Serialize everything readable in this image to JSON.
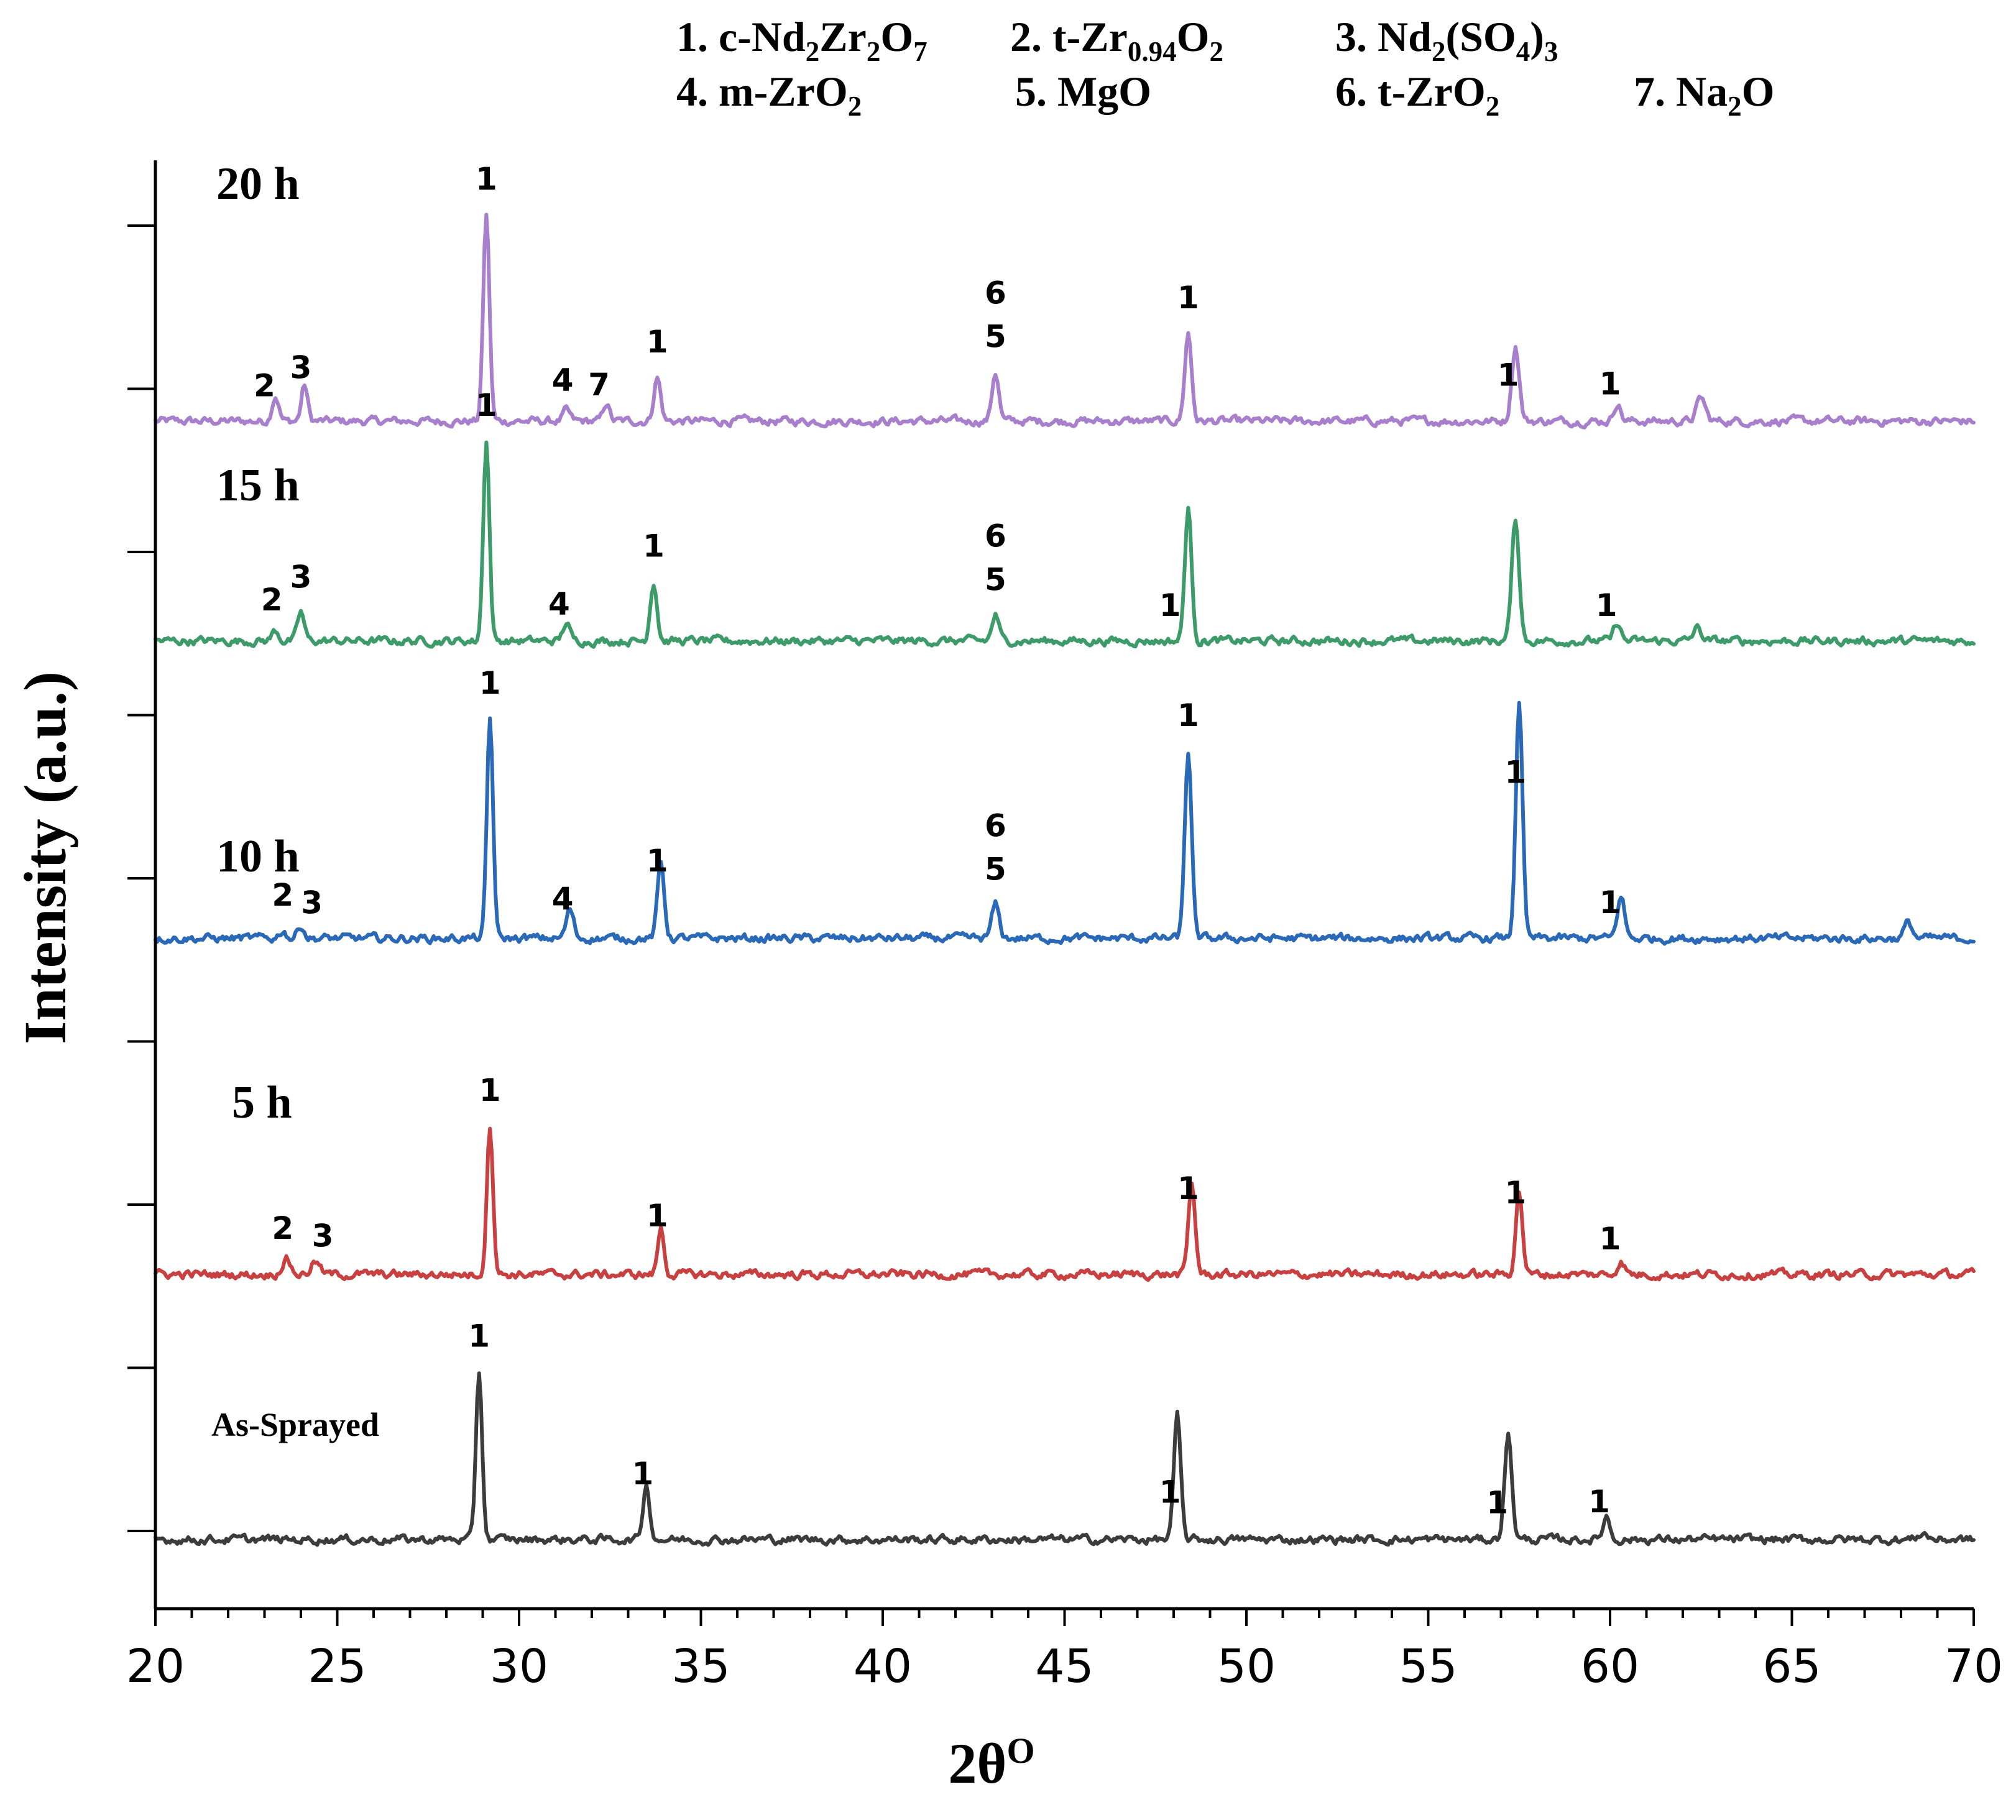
{
  "legend": [
    {
      "id": "1",
      "parts": [
        {
          "t": "1. c-Nd"
        },
        {
          "t": "2",
          "sub": true
        },
        {
          "t": "Zr"
        },
        {
          "t": "2",
          "sub": true
        },
        {
          "t": "O"
        },
        {
          "t": "7",
          "sub": true
        }
      ]
    },
    {
      "id": "2",
      "parts": [
        {
          "t": "2.  t-Zr"
        },
        {
          "t": "0.94",
          "sub": true
        },
        {
          "t": "O"
        },
        {
          "t": "2",
          "sub": true
        }
      ]
    },
    {
      "id": "3",
      "parts": [
        {
          "t": "3. Nd"
        },
        {
          "t": "2",
          "sub": true
        },
        {
          "t": "(SO"
        },
        {
          "t": "4",
          "sub": true
        },
        {
          "t": ")"
        },
        {
          "t": "3",
          "sub": true
        }
      ]
    },
    {
      "id": "4",
      "parts": [
        {
          "t": "4. m-ZrO"
        },
        {
          "t": "2",
          "sub": true
        }
      ]
    },
    {
      "id": "5",
      "parts": [
        {
          "t": "5.  MgO"
        }
      ]
    },
    {
      "id": "6",
      "parts": [
        {
          "t": "6. t-ZrO"
        },
        {
          "t": "2",
          "sub": true
        }
      ]
    },
    {
      "id": "7",
      "parts": [
        {
          "t": "7. Na"
        },
        {
          "t": "2",
          "sub": true
        },
        {
          "t": "O"
        }
      ]
    }
  ],
  "chart_data": {
    "type": "line",
    "xlabel": "2θ",
    "xlabel_superscript": "O",
    "ylabel": "Intensity (a.u.)",
    "xlim": [
      20,
      70
    ],
    "x_ticks": [
      20,
      25,
      30,
      35,
      40,
      45,
      50,
      55,
      60,
      65,
      70
    ],
    "ylim": [
      0,
      10
    ],
    "grid": false,
    "series": [
      {
        "name": "20 h",
        "color": "#a87fcc",
        "baseline": 8.8,
        "peaks": [
          [
            23.3,
            0.2,
            0.22
          ],
          [
            24.1,
            0.28,
            0.2
          ],
          [
            29.1,
            1.6,
            0.2
          ],
          [
            31.3,
            0.08,
            0.22
          ],
          [
            32.4,
            0.14,
            0.2
          ],
          [
            33.8,
            0.34,
            0.22
          ],
          [
            43.1,
            0.38,
            0.22
          ],
          [
            48.4,
            0.68,
            0.22
          ],
          [
            57.4,
            0.58,
            0.24
          ],
          [
            60.2,
            0.14,
            0.22
          ],
          [
            62.5,
            0.18,
            0.28
          ]
        ],
        "peak_labels": [
          {
            "x": 23.0,
            "text": "2"
          },
          {
            "x": 24.0,
            "text": "3"
          },
          {
            "x": 29.1,
            "text": "1"
          },
          {
            "x": 31.2,
            "text": "4"
          },
          {
            "x": 32.2,
            "text": "7"
          },
          {
            "x": 33.8,
            "text": "1"
          },
          {
            "x": 43.1,
            "text": "6"
          },
          {
            "x": 43.1,
            "text": "5"
          },
          {
            "x": 48.4,
            "text": "1"
          },
          {
            "x": 57.2,
            "text": "1"
          },
          {
            "x": 60.0,
            "text": "1"
          }
        ]
      },
      {
        "name": "15 h",
        "color": "#3c9b68",
        "baseline": 7.1,
        "peaks": [
          [
            23.3,
            0.08,
            0.22
          ],
          [
            24.0,
            0.22,
            0.22
          ],
          [
            29.1,
            1.55,
            0.2
          ],
          [
            31.3,
            0.14,
            0.22
          ],
          [
            33.7,
            0.46,
            0.22
          ],
          [
            43.1,
            0.2,
            0.22
          ],
          [
            48.4,
            1.02,
            0.22
          ],
          [
            57.4,
            0.94,
            0.24
          ],
          [
            60.2,
            0.14,
            0.22
          ],
          [
            62.4,
            0.1,
            0.26
          ]
        ],
        "peak_labels": [
          {
            "x": 23.2,
            "text": "2"
          },
          {
            "x": 24.0,
            "text": "3"
          },
          {
            "x": 29.1,
            "text": "1"
          },
          {
            "x": 31.1,
            "text": "4"
          },
          {
            "x": 33.7,
            "text": "1"
          },
          {
            "x": 43.1,
            "text": "6"
          },
          {
            "x": 43.1,
            "text": "5"
          },
          {
            "x": 47.9,
            "text": "1"
          },
          {
            "x": 59.9,
            "text": "1"
          }
        ]
      },
      {
        "name": "10 h",
        "color": "#2a68b8",
        "baseline": 4.8,
        "peaks": [
          [
            23.5,
            0.06,
            0.22
          ],
          [
            24.0,
            0.1,
            0.22
          ],
          [
            29.2,
            1.7,
            0.2
          ],
          [
            31.4,
            0.22,
            0.24
          ],
          [
            33.9,
            0.58,
            0.22
          ],
          [
            43.1,
            0.26,
            0.24
          ],
          [
            48.4,
            1.45,
            0.22
          ],
          [
            57.5,
            1.8,
            0.22
          ],
          [
            60.3,
            0.32,
            0.24
          ],
          [
            68.2,
            0.12,
            0.26
          ]
        ],
        "peak_labels": [
          {
            "x": 23.5,
            "text": "2"
          },
          {
            "x": 24.3,
            "text": "3"
          },
          {
            "x": 29.2,
            "text": "1"
          },
          {
            "x": 31.2,
            "text": "4"
          },
          {
            "x": 33.8,
            "text": "1"
          },
          {
            "x": 43.1,
            "text": "6"
          },
          {
            "x": 43.1,
            "text": "5"
          },
          {
            "x": 48.4,
            "text": "1"
          },
          {
            "x": 57.4,
            "text": "1"
          },
          {
            "x": 60.0,
            "text": "1"
          }
        ]
      },
      {
        "name": "5 h",
        "color": "#c8403f",
        "baseline": 2.2,
        "peaks": [
          [
            23.6,
            0.12,
            0.28
          ],
          [
            24.4,
            0.1,
            0.28
          ],
          [
            29.2,
            1.15,
            0.2
          ],
          [
            33.9,
            0.36,
            0.2
          ],
          [
            48.5,
            0.7,
            0.22
          ],
          [
            57.5,
            0.64,
            0.22
          ],
          [
            60.3,
            0.1,
            0.24
          ]
        ],
        "peak_labels": [
          {
            "x": 23.5,
            "text": "2"
          },
          {
            "x": 24.6,
            "text": "3"
          },
          {
            "x": 29.2,
            "text": "1"
          },
          {
            "x": 33.8,
            "text": "1"
          },
          {
            "x": 48.4,
            "text": "1"
          },
          {
            "x": 57.4,
            "text": "1"
          },
          {
            "x": 60.0,
            "text": "1"
          }
        ]
      },
      {
        "name": "As-Sprayed",
        "color": "#3c3c3c",
        "baseline": 0.15,
        "peaks": [
          [
            28.9,
            1.3,
            0.2
          ],
          [
            33.5,
            0.42,
            0.22
          ],
          [
            48.1,
            0.95,
            0.22
          ],
          [
            57.2,
            0.8,
            0.24
          ],
          [
            59.9,
            0.18,
            0.22
          ],
          [
            68.6,
            0.05,
            0.3
          ]
        ],
        "peak_labels": [
          {
            "x": 28.9,
            "text": "1"
          },
          {
            "x": 33.4,
            "text": "1"
          },
          {
            "x": 47.9,
            "text": "1"
          },
          {
            "x": 56.9,
            "text": "1"
          },
          {
            "x": 59.7,
            "text": "1"
          }
        ]
      }
    ]
  }
}
